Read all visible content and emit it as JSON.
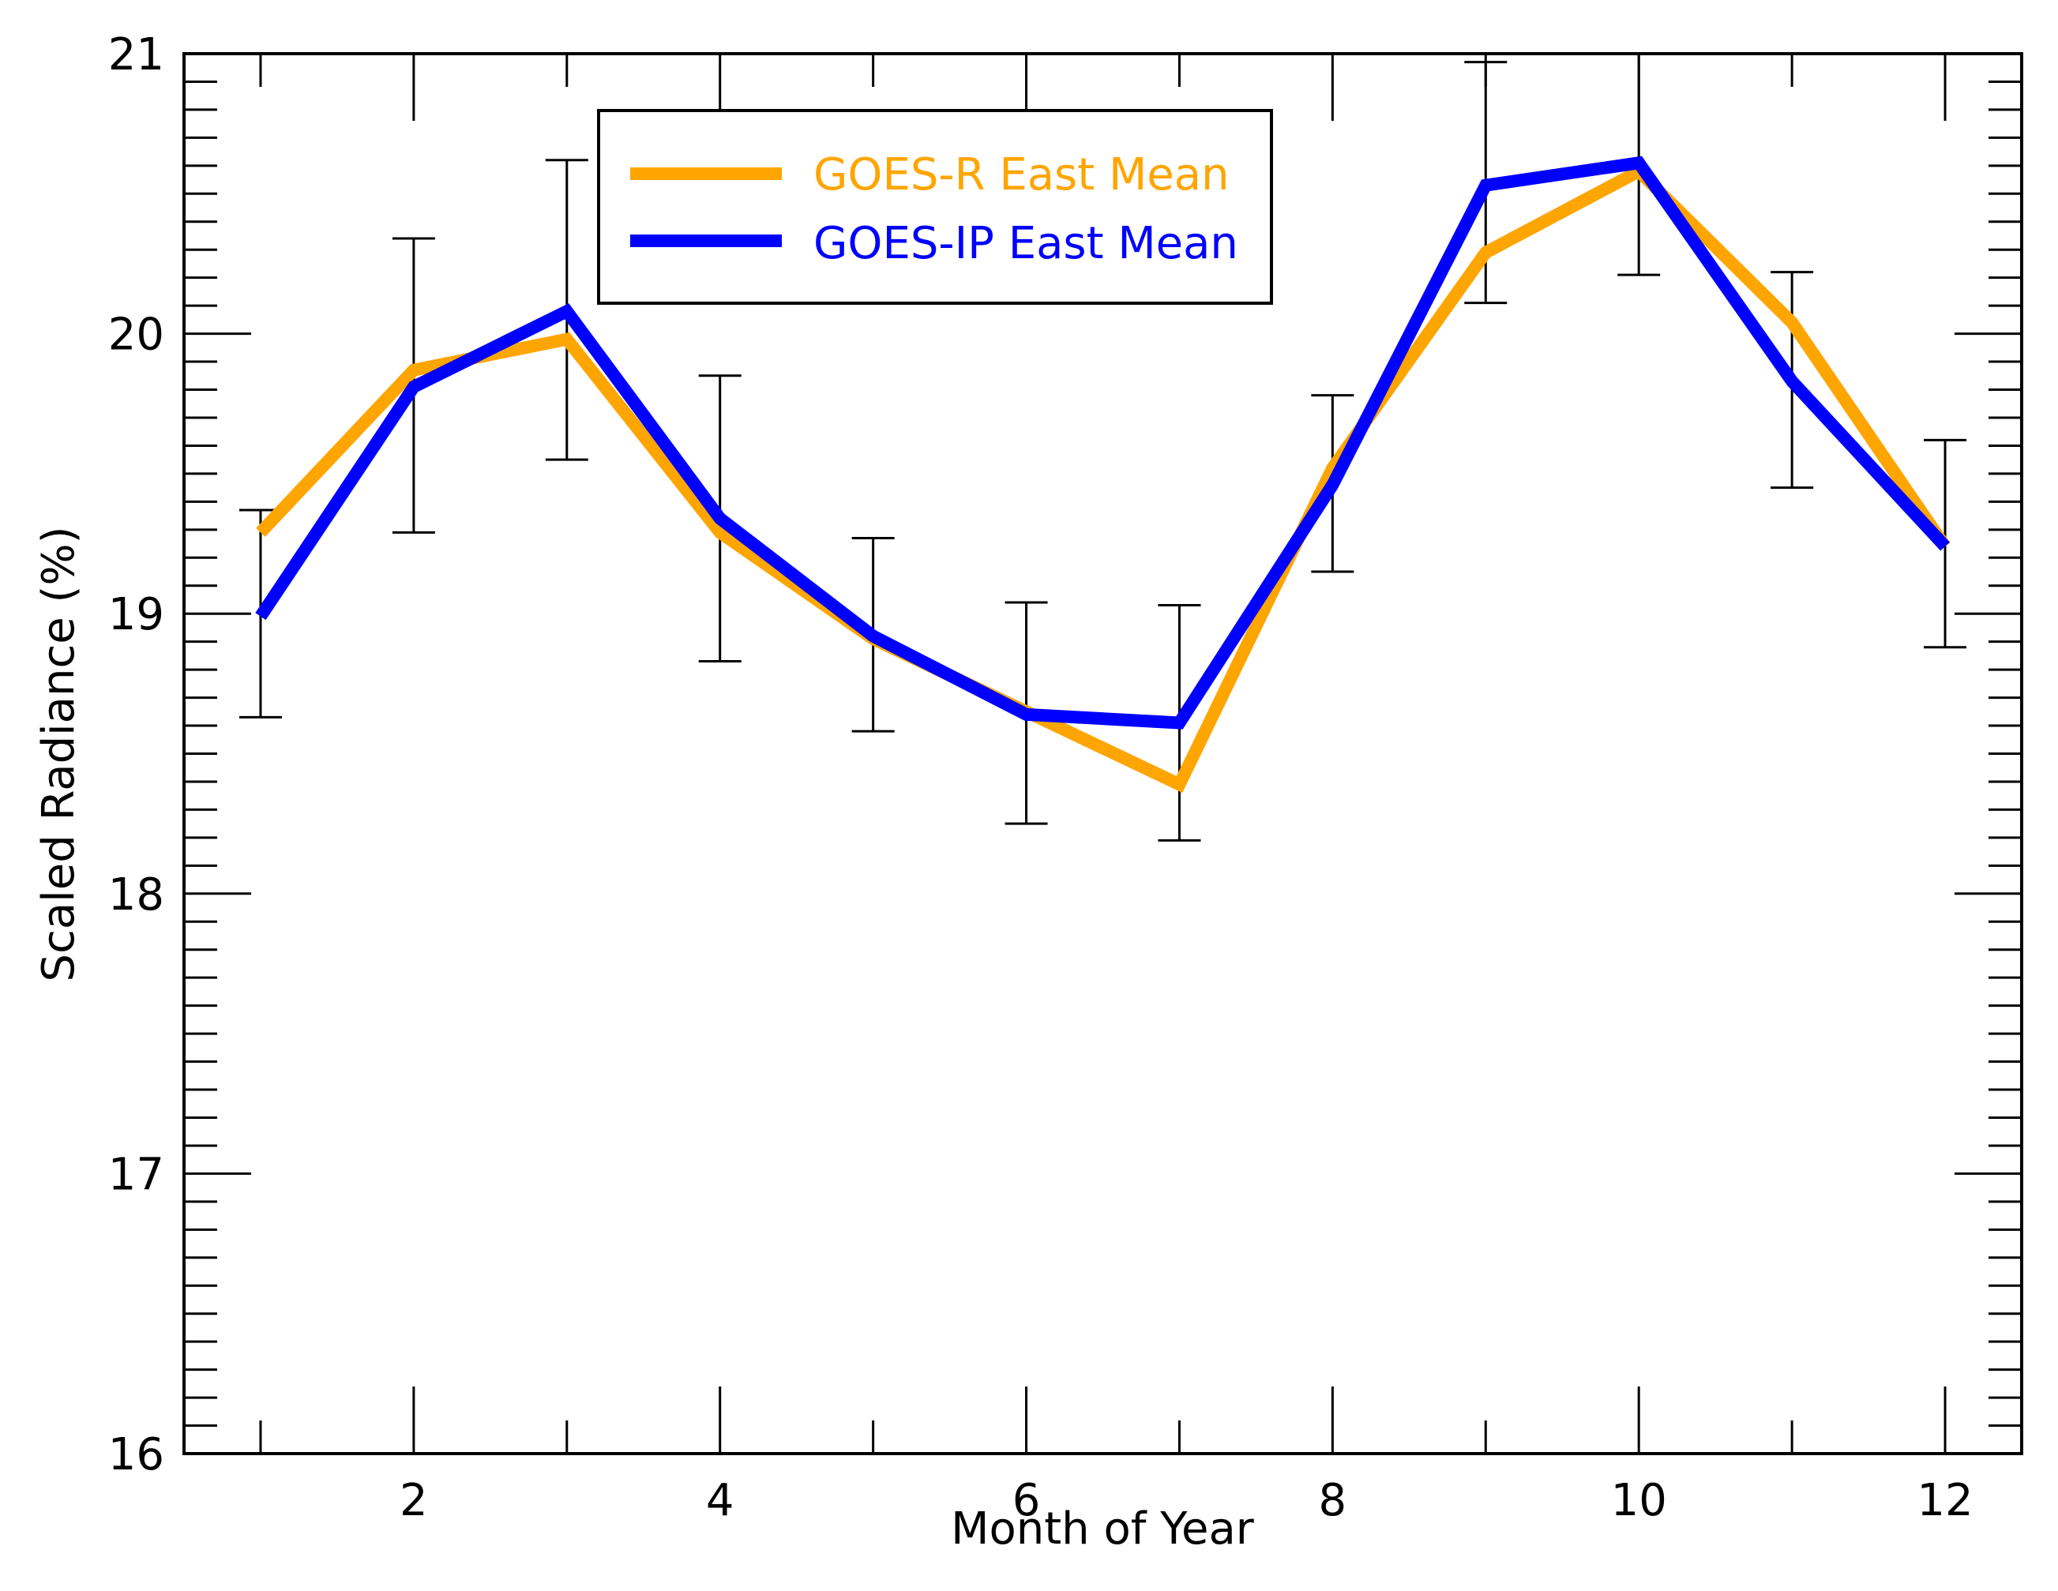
{
  "chart_data": {
    "type": "line",
    "title": "",
    "xlabel": "Month of Year",
    "ylabel": "Scaled Radiance (%)",
    "xlim": [
      0.5,
      12.5
    ],
    "ylim": [
      16,
      21
    ],
    "x": [
      1,
      2,
      3,
      4,
      5,
      6,
      7,
      8,
      9,
      10,
      11,
      12
    ],
    "x_major_ticks": [
      2,
      4,
      6,
      8,
      10,
      12
    ],
    "x_tick_labels": [
      "2",
      "4",
      "6",
      "8",
      "10",
      "12"
    ],
    "x_minor_ticks": [
      1,
      3,
      5,
      7,
      9,
      11
    ],
    "y_major_ticks": [
      16,
      17,
      18,
      19,
      20,
      21
    ],
    "y_tick_labels": [
      "16",
      "17",
      "18",
      "19",
      "20",
      "21"
    ],
    "y_minor_step": 0.1,
    "grid": false,
    "legend_position": "top-center",
    "series": [
      {
        "name": "GOES-R East Mean",
        "color": "#FFA500",
        "values": [
          19.29,
          19.87,
          19.98,
          19.29,
          18.91,
          18.65,
          18.39,
          19.52,
          20.29,
          20.58,
          20.04,
          19.24
        ],
        "error_lower": [
          18.63,
          19.29,
          19.55,
          18.83,
          18.58,
          18.25,
          18.19,
          19.15,
          20.11,
          20.21,
          19.45,
          18.88
        ],
        "error_upper": [
          19.37,
          20.34,
          20.62,
          19.85,
          19.27,
          19.04,
          19.03,
          19.78,
          20.97,
          21.0,
          20.22,
          19.62
        ]
      },
      {
        "name": "GOES-IP East Mean",
        "color": "#0000FF",
        "values": [
          18.99,
          19.81,
          20.08,
          19.34,
          18.92,
          18.64,
          18.61,
          19.46,
          20.53,
          20.61,
          19.83,
          19.24
        ]
      }
    ]
  }
}
